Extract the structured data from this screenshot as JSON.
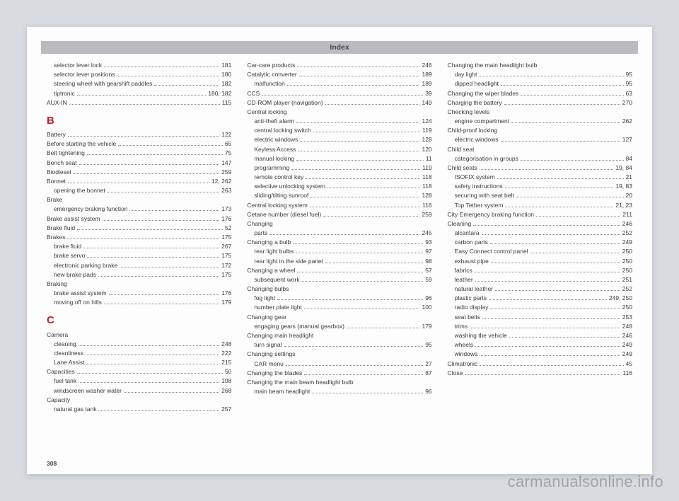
{
  "header_title": "Index",
  "page_number": "308",
  "watermark": "carmanualsonline.info",
  "columns": [
    [
      {
        "type": "entry",
        "sub": true,
        "label": "selector lever lock",
        "pg": "181"
      },
      {
        "type": "entry",
        "sub": true,
        "label": "selector lever positions",
        "pg": "180"
      },
      {
        "type": "entry",
        "sub": true,
        "label": "steering wheel with gearshift paddles",
        "pg": "182"
      },
      {
        "type": "entry",
        "sub": true,
        "label": "tiptronic",
        "pg": "180, 182"
      },
      {
        "type": "entry",
        "sub": false,
        "label": "AUX-IN",
        "pg": "115"
      },
      {
        "type": "letter",
        "text": "B"
      },
      {
        "type": "entry",
        "sub": false,
        "label": "Battery",
        "pg": "122"
      },
      {
        "type": "entry",
        "sub": false,
        "label": "Before starting the vehicle",
        "pg": "65"
      },
      {
        "type": "entry",
        "sub": false,
        "label": "Belt tightening",
        "pg": "75"
      },
      {
        "type": "entry",
        "sub": false,
        "label": "Bench seat",
        "pg": "147"
      },
      {
        "type": "entry",
        "sub": false,
        "label": "Biodiesel",
        "pg": "259"
      },
      {
        "type": "entry",
        "sub": false,
        "label": "Bonnet",
        "pg": "12, 262"
      },
      {
        "type": "entry",
        "sub": true,
        "label": "opening the bonnet",
        "pg": "263"
      },
      {
        "type": "entry",
        "sub": false,
        "label": "Brake",
        "pg": ""
      },
      {
        "type": "entry",
        "sub": true,
        "label": "emergency braking function",
        "pg": "173"
      },
      {
        "type": "entry",
        "sub": false,
        "label": "Brake assist system",
        "pg": "176"
      },
      {
        "type": "entry",
        "sub": false,
        "label": "Brake fluid",
        "pg": "52"
      },
      {
        "type": "entry",
        "sub": false,
        "label": "Brakes",
        "pg": "175"
      },
      {
        "type": "entry",
        "sub": true,
        "label": "brake fluid",
        "pg": "267"
      },
      {
        "type": "entry",
        "sub": true,
        "label": "brake servo",
        "pg": "175"
      },
      {
        "type": "entry",
        "sub": true,
        "label": "electronic parking brake",
        "pg": "172"
      },
      {
        "type": "entry",
        "sub": true,
        "label": "new brake pads",
        "pg": "175"
      },
      {
        "type": "entry",
        "sub": false,
        "label": "Braking",
        "pg": ""
      },
      {
        "type": "entry",
        "sub": true,
        "label": "brake assist system",
        "pg": "176"
      },
      {
        "type": "entry",
        "sub": true,
        "label": "moving off on hills",
        "pg": "179"
      },
      {
        "type": "letter",
        "text": "C"
      },
      {
        "type": "entry",
        "sub": false,
        "label": "Camera",
        "pg": ""
      },
      {
        "type": "entry",
        "sub": true,
        "label": "cleaning",
        "pg": "248"
      },
      {
        "type": "entry",
        "sub": true,
        "label": "cleanliness",
        "pg": "222"
      },
      {
        "type": "entry",
        "sub": true,
        "label": "Lane Assist",
        "pg": "215"
      },
      {
        "type": "entry",
        "sub": false,
        "label": "Capacities",
        "pg": "50"
      },
      {
        "type": "entry",
        "sub": true,
        "label": "fuel tank",
        "pg": "108"
      },
      {
        "type": "entry",
        "sub": true,
        "label": "windscreen washer water",
        "pg": "268"
      },
      {
        "type": "entry",
        "sub": false,
        "label": "Capacity",
        "pg": ""
      },
      {
        "type": "entry",
        "sub": true,
        "label": "natural gas tank",
        "pg": "257"
      }
    ],
    [
      {
        "type": "entry",
        "sub": false,
        "label": "Car-care products",
        "pg": "246"
      },
      {
        "type": "entry",
        "sub": false,
        "label": "Catalytic converter",
        "pg": "189"
      },
      {
        "type": "entry",
        "sub": true,
        "label": "malfunction",
        "pg": "189"
      },
      {
        "type": "entry",
        "sub": false,
        "label": "CCS",
        "pg": "39"
      },
      {
        "type": "entry",
        "sub": false,
        "label": "CD-ROM player (navigation)",
        "pg": "149"
      },
      {
        "type": "entry",
        "sub": false,
        "label": "Central locking",
        "pg": ""
      },
      {
        "type": "entry",
        "sub": true,
        "label": "anti-theft alarm",
        "pg": "124"
      },
      {
        "type": "entry",
        "sub": true,
        "label": "central locking switch",
        "pg": "119"
      },
      {
        "type": "entry",
        "sub": true,
        "label": "electric windows",
        "pg": "128"
      },
      {
        "type": "entry",
        "sub": true,
        "label": "Keyless Access",
        "pg": "120"
      },
      {
        "type": "entry",
        "sub": true,
        "label": "manual locking",
        "pg": "11"
      },
      {
        "type": "entry",
        "sub": true,
        "label": "programming",
        "pg": "119"
      },
      {
        "type": "entry",
        "sub": true,
        "label": "remote control key",
        "pg": "118"
      },
      {
        "type": "entry",
        "sub": true,
        "label": "selective unlocking system",
        "pg": "118"
      },
      {
        "type": "entry",
        "sub": true,
        "label": "sliding/tilting sunroof",
        "pg": "128"
      },
      {
        "type": "entry",
        "sub": false,
        "label": "Central locking system",
        "pg": "116"
      },
      {
        "type": "entry",
        "sub": false,
        "label": "Cetane number (diesel fuel)",
        "pg": "259"
      },
      {
        "type": "entry",
        "sub": false,
        "label": "Changing",
        "pg": ""
      },
      {
        "type": "entry",
        "sub": true,
        "label": "parts",
        "pg": "245"
      },
      {
        "type": "entry",
        "sub": false,
        "label": "Changing a bulb",
        "pg": "93"
      },
      {
        "type": "entry",
        "sub": true,
        "label": "rear light bulbs",
        "pg": "97"
      },
      {
        "type": "entry",
        "sub": true,
        "label": "rear light in the side panel",
        "pg": "98"
      },
      {
        "type": "entry",
        "sub": false,
        "label": "Changing a wheel",
        "pg": "57"
      },
      {
        "type": "entry",
        "sub": true,
        "label": "subsequent work",
        "pg": "59"
      },
      {
        "type": "entry",
        "sub": false,
        "label": "Changing bulbs",
        "pg": ""
      },
      {
        "type": "entry",
        "sub": true,
        "label": "fog light",
        "pg": "96"
      },
      {
        "type": "entry",
        "sub": true,
        "label": "number plate light",
        "pg": "100"
      },
      {
        "type": "entry",
        "sub": false,
        "label": "Changing gear",
        "pg": ""
      },
      {
        "type": "entry",
        "sub": true,
        "label": "engaging gears (manual gearbox)",
        "pg": "179"
      },
      {
        "type": "entry",
        "sub": false,
        "label": "Changing main headlight",
        "pg": ""
      },
      {
        "type": "entry",
        "sub": true,
        "label": "turn signal",
        "pg": "95"
      },
      {
        "type": "entry",
        "sub": false,
        "label": "Changing settings",
        "pg": ""
      },
      {
        "type": "entry",
        "sub": true,
        "label": "CAR menu",
        "pg": "27"
      },
      {
        "type": "entry",
        "sub": false,
        "label": "Changing the blades",
        "pg": "87"
      },
      {
        "type": "entry",
        "sub": false,
        "label": "Changing the main beam headlight bulb",
        "pg": ""
      },
      {
        "type": "entry",
        "sub": true,
        "label": "main beam headlight",
        "pg": "96"
      }
    ],
    [
      {
        "type": "entry",
        "sub": false,
        "label": "Changing the main headlight bulb",
        "pg": ""
      },
      {
        "type": "entry",
        "sub": true,
        "label": "day light",
        "pg": "95"
      },
      {
        "type": "entry",
        "sub": true,
        "label": "dipped headlight",
        "pg": "95"
      },
      {
        "type": "entry",
        "sub": false,
        "label": "Changing the wiper blades",
        "pg": "63"
      },
      {
        "type": "entry",
        "sub": false,
        "label": "Charging the battery",
        "pg": "270"
      },
      {
        "type": "entry",
        "sub": false,
        "label": "Checking levels",
        "pg": ""
      },
      {
        "type": "entry",
        "sub": true,
        "label": "engine compartment",
        "pg": "262"
      },
      {
        "type": "entry",
        "sub": false,
        "label": "Child-proof locking",
        "pg": ""
      },
      {
        "type": "entry",
        "sub": true,
        "label": "electric windows",
        "pg": "127"
      },
      {
        "type": "entry",
        "sub": false,
        "label": "Child seat",
        "pg": ""
      },
      {
        "type": "entry",
        "sub": true,
        "label": "categorisation in groups",
        "pg": "84"
      },
      {
        "type": "entry",
        "sub": false,
        "label": "Child seats",
        "pg": "19, 84"
      },
      {
        "type": "entry",
        "sub": true,
        "label": "ISOFIX system",
        "pg": "21"
      },
      {
        "type": "entry",
        "sub": true,
        "label": "safety instructions",
        "pg": "19, 83"
      },
      {
        "type": "entry",
        "sub": true,
        "label": "securing with seat belt",
        "pg": "20"
      },
      {
        "type": "entry",
        "sub": true,
        "label": "Top Tether system",
        "pg": "21, 23"
      },
      {
        "type": "entry",
        "sub": false,
        "label": "City Emergency braking function",
        "pg": "211"
      },
      {
        "type": "entry",
        "sub": false,
        "label": "Cleaning",
        "pg": "246"
      },
      {
        "type": "entry",
        "sub": true,
        "label": "alcantara",
        "pg": "252"
      },
      {
        "type": "entry",
        "sub": true,
        "label": "carbon parts",
        "pg": "249"
      },
      {
        "type": "entry",
        "sub": true,
        "label": "Easy Connect control panel",
        "pg": "250"
      },
      {
        "type": "entry",
        "sub": true,
        "label": "exhaust pipe",
        "pg": "250"
      },
      {
        "type": "entry",
        "sub": true,
        "label": "fabrics",
        "pg": "250"
      },
      {
        "type": "entry",
        "sub": true,
        "label": "leather",
        "pg": "251"
      },
      {
        "type": "entry",
        "sub": true,
        "label": "natural leather",
        "pg": "252"
      },
      {
        "type": "entry",
        "sub": true,
        "label": "plastic parts",
        "pg": "249, 250"
      },
      {
        "type": "entry",
        "sub": true,
        "label": "radio display",
        "pg": "250"
      },
      {
        "type": "entry",
        "sub": true,
        "label": "seat belts",
        "pg": "253"
      },
      {
        "type": "entry",
        "sub": true,
        "label": "trims",
        "pg": "248"
      },
      {
        "type": "entry",
        "sub": true,
        "label": "washing the vehicle",
        "pg": "246"
      },
      {
        "type": "entry",
        "sub": true,
        "label": "wheels",
        "pg": "249"
      },
      {
        "type": "entry",
        "sub": true,
        "label": "windows",
        "pg": "249"
      },
      {
        "type": "entry",
        "sub": false,
        "label": "Climatronic",
        "pg": "45"
      },
      {
        "type": "entry",
        "sub": false,
        "label": "Close",
        "pg": "116"
      }
    ]
  ]
}
